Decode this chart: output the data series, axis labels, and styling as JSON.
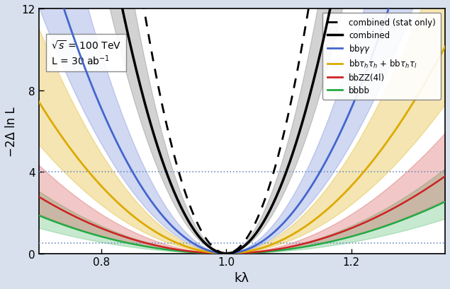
{
  "title": "",
  "xlabel": "kλ",
  "ylabel": "−2Δ ln L",
  "xlim": [
    0.7,
    1.35
  ],
  "ylim": [
    0,
    12
  ],
  "xticks": [
    0.8,
    1.0,
    1.2
  ],
  "yticks": [
    0,
    4,
    8,
    12
  ],
  "background_color": "#d8e0ed",
  "plot_bg_color": "#ffffff",
  "hline1": 4.0,
  "hline2": 0.5,
  "hline_color": "#7090c0",
  "annotation_text": "√s = 100 TeV\nL = 30 ab⁻¹",
  "colors": {
    "combined_stat": "#000000",
    "combined": "#000000",
    "bbyy": "#4466cc",
    "bbtautau": "#ddaa00",
    "bbZZ": "#cc2222",
    "bbbb": "#22aa44"
  },
  "band_alpha": {
    "bbyy": 0.25,
    "bbtautau": 0.3,
    "bbZZ": 0.25,
    "bbbb": 0.25,
    "combined": 0.35
  },
  "legend_labels": [
    "combined (stat only)",
    "combined",
    "bbγγ",
    "bbτₕτₕ + bbτₕτₗ",
    "bbZZ(4l)",
    "bbbb"
  ]
}
